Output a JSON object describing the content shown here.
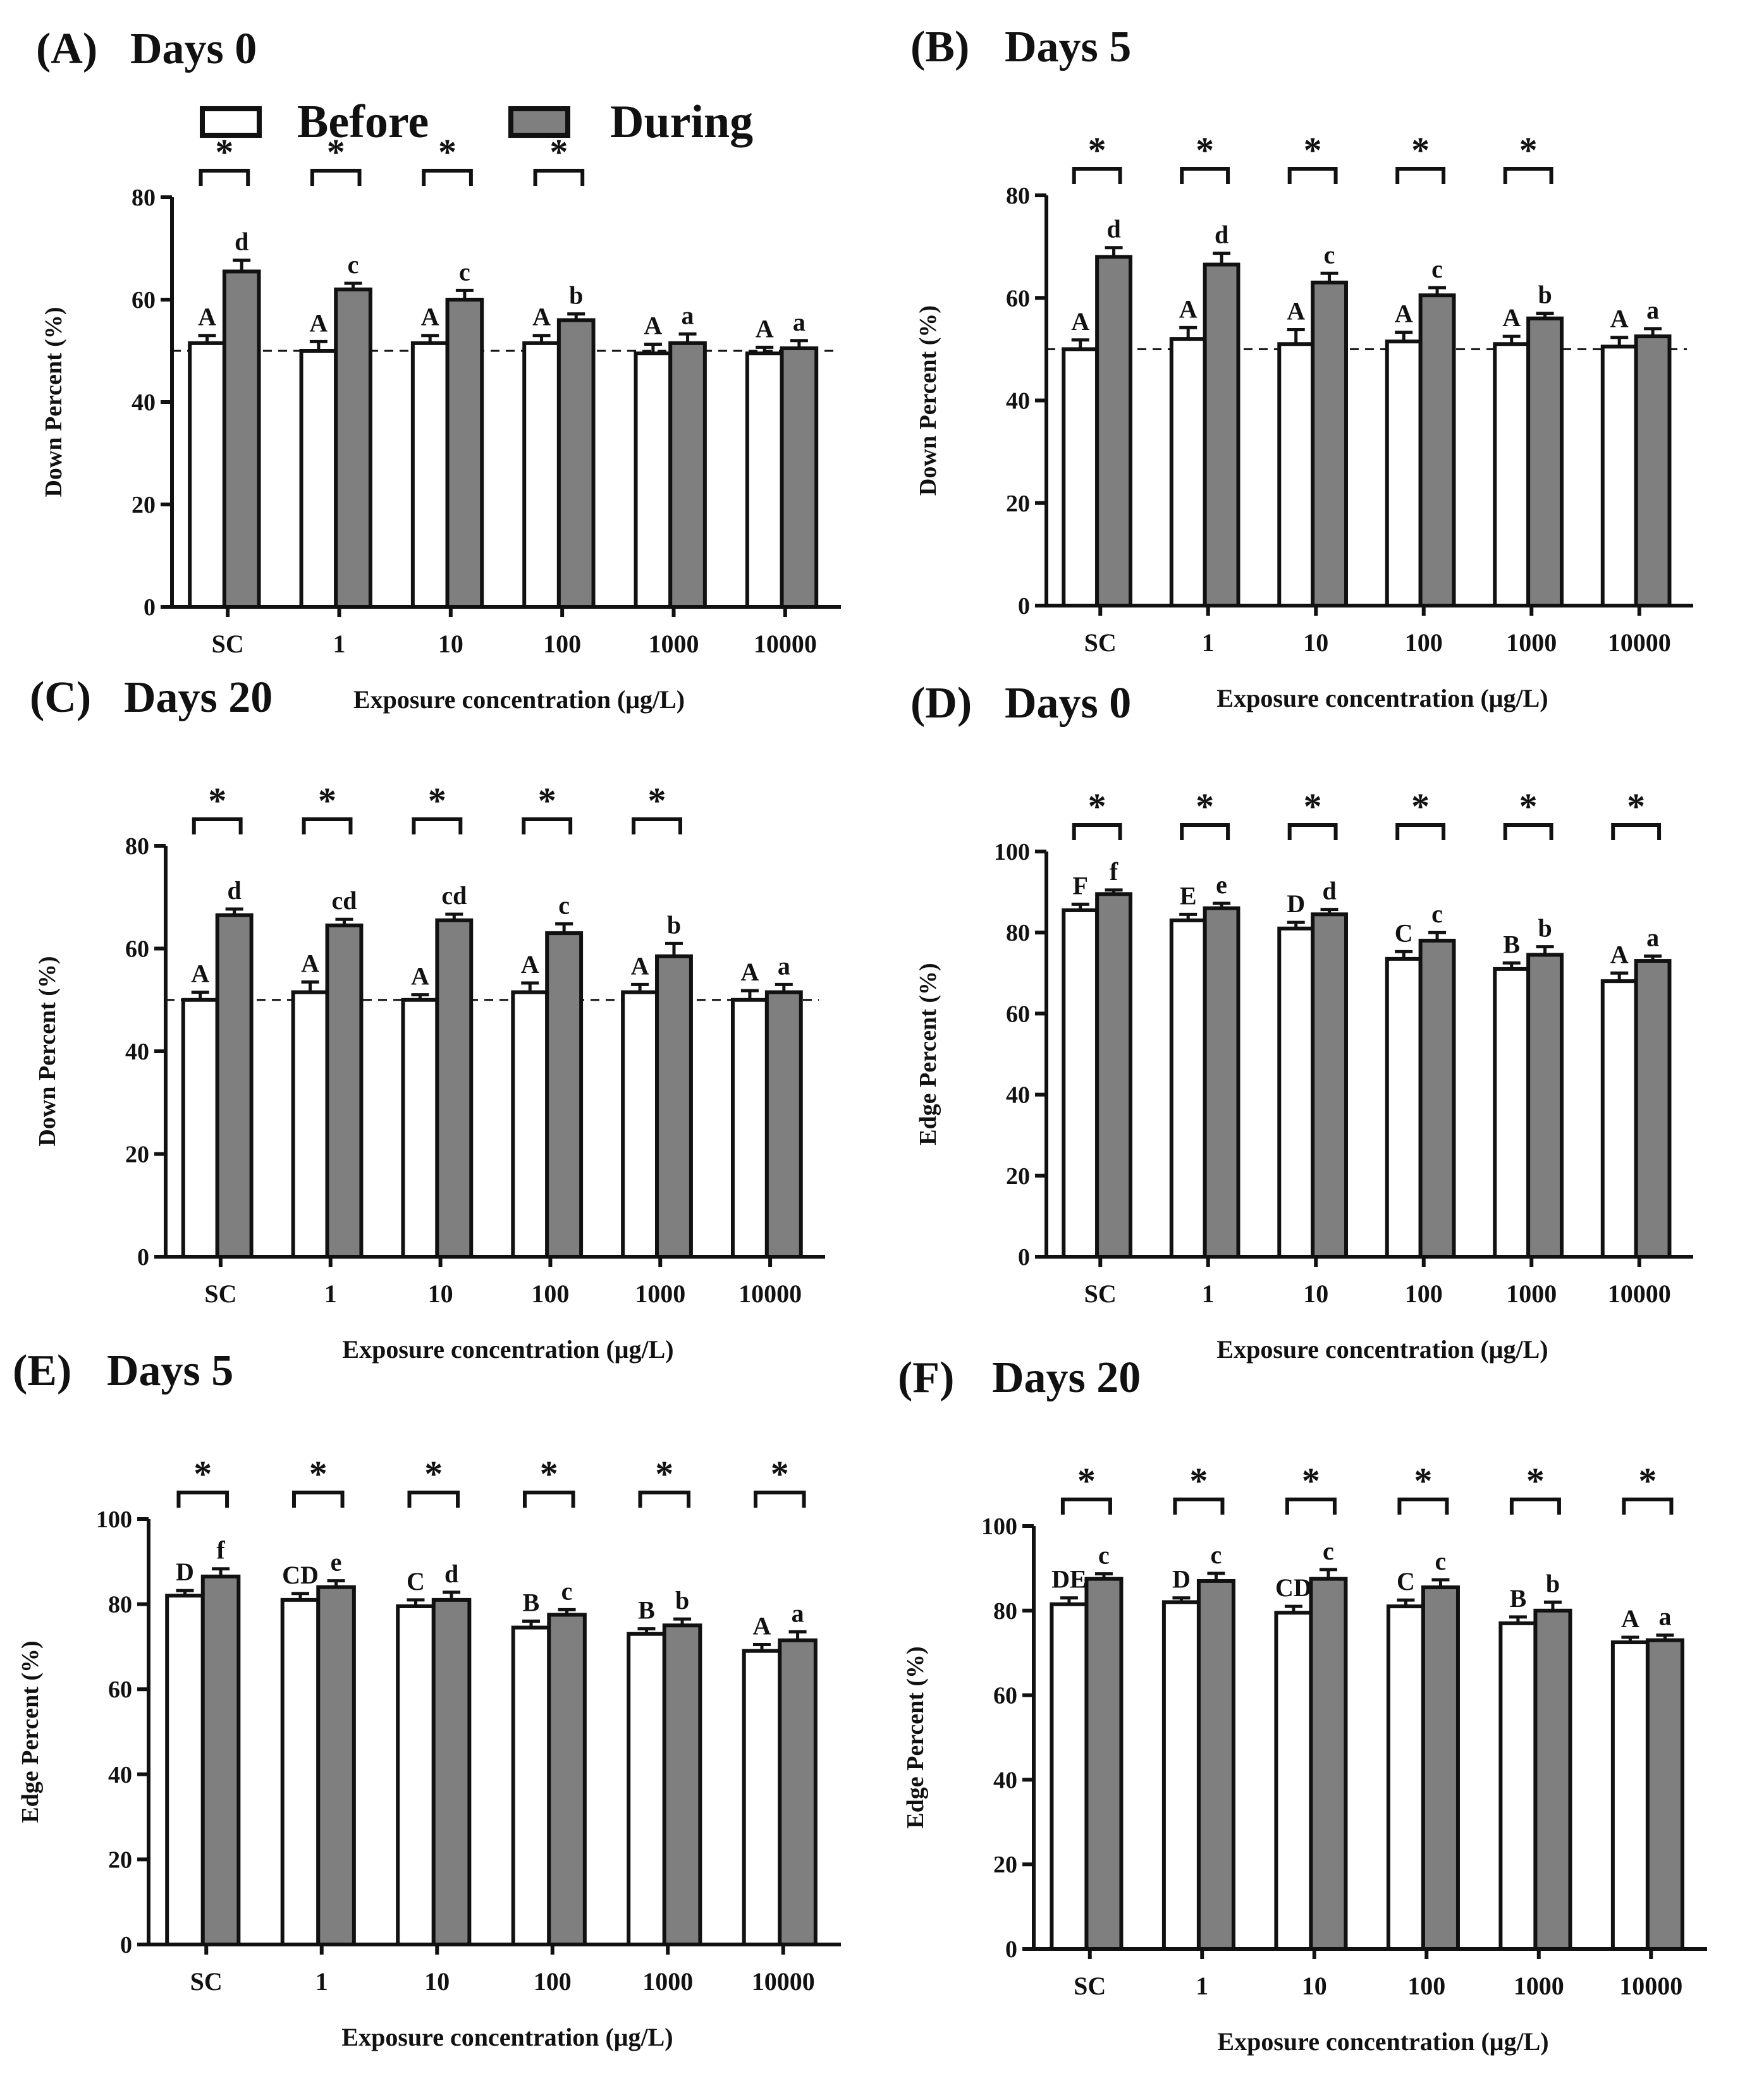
{
  "legend": {
    "before_label": "Before",
    "during_label": "During",
    "before_color": "#ffffff",
    "during_color": "#7f7f7f"
  },
  "chart_data": [
    {
      "panel": "(A)",
      "title": "Days 0",
      "type": "bar",
      "categories": [
        "SC",
        "1",
        "10",
        "100",
        "1000",
        "10000"
      ],
      "xlabel": "Exposure concentration (μg/L)",
      "ylabel": "Down Percent (%)",
      "ylim": [
        0,
        80
      ],
      "yticks": [
        0,
        20,
        40,
        60,
        80
      ],
      "reference_line": 50,
      "series": [
        {
          "name": "Before",
          "values": [
            51.5,
            50,
            51.5,
            51.5,
            49.5,
            49.5
          ],
          "errors": [
            1.5,
            1.8,
            1.5,
            1.5,
            1.8,
            1.2
          ],
          "labels": [
            "A",
            "A",
            "A",
            "A",
            "A",
            "A"
          ]
        },
        {
          "name": "During",
          "values": [
            65.5,
            62,
            60,
            56,
            51.5,
            50.5
          ],
          "errors": [
            2.2,
            1.2,
            1.8,
            1.2,
            1.8,
            1.5
          ],
          "labels": [
            "d",
            "c",
            "c",
            "b",
            "a",
            "a"
          ]
        }
      ],
      "significance": [
        "*",
        "*",
        "*",
        "*",
        "",
        ""
      ]
    },
    {
      "panel": "(B)",
      "title": "Days 5",
      "type": "bar",
      "categories": [
        "SC",
        "1",
        "10",
        "100",
        "1000",
        "10000"
      ],
      "xlabel": "Exposure concentration (μg/L)",
      "ylabel": "Down Percent (%)",
      "ylim": [
        0,
        80
      ],
      "yticks": [
        0,
        20,
        40,
        60,
        80
      ],
      "reference_line": 50,
      "series": [
        {
          "name": "Before",
          "values": [
            50,
            52,
            51,
            51.5,
            51,
            50.5
          ],
          "errors": [
            1.8,
            2.2,
            2.8,
            1.8,
            1.5,
            1.8
          ],
          "labels": [
            "A",
            "A",
            "A",
            "A",
            "A",
            "A"
          ]
        },
        {
          "name": "During",
          "values": [
            68,
            66.5,
            63,
            60.5,
            56,
            52.5
          ],
          "errors": [
            1.8,
            2.2,
            1.8,
            1.5,
            1,
            1.5
          ],
          "labels": [
            "d",
            "d",
            "c",
            "c",
            "b",
            "a"
          ]
        }
      ],
      "significance": [
        "*",
        "*",
        "*",
        "*",
        "*",
        ""
      ]
    },
    {
      "panel": "(C)",
      "title": "Days 20",
      "type": "bar",
      "categories": [
        "SC",
        "1",
        "10",
        "100",
        "1000",
        "10000"
      ],
      "xlabel": "Exposure concentration (μg/L)",
      "ylabel": "Down Percent (%)",
      "ylim": [
        0,
        80
      ],
      "yticks": [
        0,
        20,
        40,
        60,
        80
      ],
      "reference_line": 50,
      "series": [
        {
          "name": "Before",
          "values": [
            50,
            51.5,
            50,
            51.5,
            51.5,
            50
          ],
          "errors": [
            1.5,
            2,
            1,
            1.8,
            1.5,
            1.8
          ],
          "labels": [
            "A",
            "A",
            "A",
            "A",
            "A",
            "A"
          ]
        },
        {
          "name": "During",
          "values": [
            66.5,
            64.5,
            65.5,
            63,
            58.5,
            51.5
          ],
          "errors": [
            1.2,
            1.2,
            1.2,
            1.8,
            2.5,
            1.5
          ],
          "labels": [
            "d",
            "cd",
            "cd",
            "c",
            "b",
            "a"
          ]
        }
      ],
      "significance": [
        "*",
        "*",
        "*",
        "*",
        "*",
        ""
      ]
    },
    {
      "panel": "(D)",
      "title": "Days 0",
      "type": "bar",
      "categories": [
        "SC",
        "1",
        "10",
        "100",
        "1000",
        "10000"
      ],
      "xlabel": "Exposure concentration (μg/L)",
      "ylabel": "Edge Percent (%)",
      "ylim": [
        0,
        100
      ],
      "yticks": [
        0,
        20,
        40,
        60,
        80,
        100
      ],
      "reference_line": null,
      "series": [
        {
          "name": "Before",
          "values": [
            85.5,
            83,
            81,
            73.5,
            71,
            68
          ],
          "errors": [
            1.5,
            1.5,
            1.5,
            1.8,
            1.5,
            2
          ],
          "labels": [
            "F",
            "E",
            "D",
            "C",
            "B",
            "A"
          ]
        },
        {
          "name": "During",
          "values": [
            89.5,
            86,
            84.5,
            78,
            74.5,
            73
          ],
          "errors": [
            1,
            1.2,
            1.2,
            2,
            2,
            1.2
          ],
          "labels": [
            "f",
            "e",
            "d",
            "c",
            "b",
            "a"
          ]
        }
      ],
      "significance": [
        "*",
        "*",
        "*",
        "*",
        "*",
        "*"
      ]
    },
    {
      "panel": "(E)",
      "title": "Days 5",
      "type": "bar",
      "categories": [
        "SC",
        "1",
        "10",
        "100",
        "1000",
        "10000"
      ],
      "xlabel": "Exposure concentration (μg/L)",
      "ylabel": "Edge Percent (%)",
      "ylim": [
        0,
        100
      ],
      "yticks": [
        0,
        20,
        40,
        60,
        80,
        100
      ],
      "reference_line": null,
      "series": [
        {
          "name": "Before",
          "values": [
            82,
            81,
            79.5,
            74.5,
            73,
            69
          ],
          "errors": [
            1.2,
            1.5,
            1.5,
            1.5,
            1.2,
            1.5
          ],
          "labels": [
            "D",
            "CD",
            "C",
            "B",
            "B",
            "A"
          ]
        },
        {
          "name": "During",
          "values": [
            86.5,
            84,
            81,
            77.5,
            75,
            71.5
          ],
          "errors": [
            1.8,
            1.5,
            1.8,
            1.2,
            1.5,
            2
          ],
          "labels": [
            "f",
            "e",
            "d",
            "c",
            "b",
            "a"
          ]
        }
      ],
      "significance": [
        "*",
        "*",
        "*",
        "*",
        "*",
        "*"
      ]
    },
    {
      "panel": "(F)",
      "title": "Days 20",
      "type": "bar",
      "categories": [
        "SC",
        "1",
        "10",
        "100",
        "1000",
        "10000"
      ],
      "xlabel": "Exposure concentration (μg/L)",
      "ylabel": "Edge Percent (%)",
      "ylim": [
        0,
        100
      ],
      "yticks": [
        0,
        20,
        40,
        60,
        80,
        100
      ],
      "reference_line": null,
      "series": [
        {
          "name": "Before",
          "values": [
            81.5,
            82,
            79.5,
            81,
            77,
            72.5
          ],
          "errors": [
            1.5,
            1,
            1.5,
            1.5,
            1.5,
            1.2
          ],
          "labels": [
            "DE",
            "D",
            "CD",
            "C",
            "B",
            "A"
          ]
        },
        {
          "name": "During",
          "values": [
            87.5,
            87,
            87.5,
            85.5,
            80,
            73
          ],
          "errors": [
            1.2,
            1.8,
            2.2,
            1.8,
            2,
            1.2
          ],
          "labels": [
            "c",
            "c",
            "c",
            "c",
            "b",
            "a"
          ]
        }
      ],
      "significance": [
        "*",
        "*",
        "*",
        "*",
        "*",
        "*"
      ]
    }
  ]
}
